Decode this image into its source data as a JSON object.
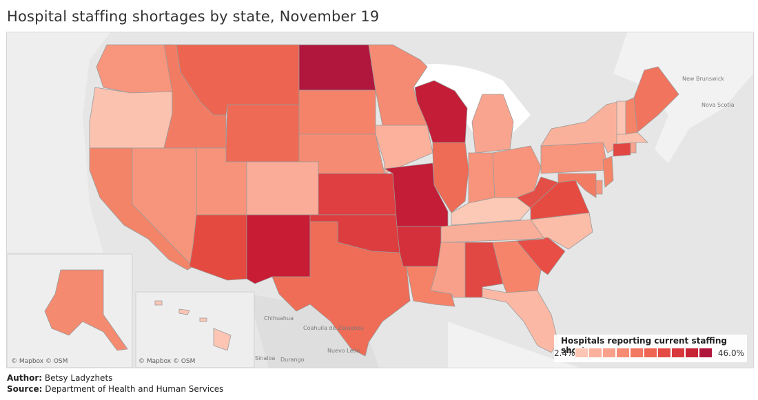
{
  "title": "Hospital staffing shortages by state, November 19",
  "legend": {
    "title": "Hospitals reporting current staffing shortage",
    "min_label": "2.4%",
    "max_label": "46.0%",
    "colors": [
      "#fcc5b4",
      "#fbb09c",
      "#f9a08a",
      "#f78b74",
      "#f27861",
      "#ee6652",
      "#e34a44",
      "#d8373c",
      "#c72335",
      "#b0163c"
    ]
  },
  "credits": {
    "main": "© Mapbox © OSM",
    "alaska_inset": "© Mapbox © OSM",
    "hawaii_inset": "© Mapbox © OSM"
  },
  "geo_labels": {
    "new_brunswick": "New Brunswick",
    "nova_scotia": "Nova Scotia",
    "chihuahua": "Chihuahua",
    "coahuila": "Coahuila de Zaragoza",
    "nuevo_leon": "Nuevo León",
    "sinaloa": "Sinaloa",
    "durango": "Durango"
  },
  "footer": {
    "author_label": "Author:",
    "author_value": "Betsy Ladyzhets",
    "source_label": "Source:",
    "source_value": "Department of Health and Human Services"
  },
  "state_colors": {
    "WA": "#f8957d",
    "OR": "#fcc2b0",
    "CA": "#f48468",
    "NV": "#f7957c",
    "ID": "#f27c63",
    "MT": "#ed6550",
    "WY": "#ef6a55",
    "UT": "#f7937b",
    "AZ": "#e54a40",
    "CO": "#fbac98",
    "NM": "#c81c35",
    "ND": "#b1173c",
    "SD": "#f4836a",
    "NE": "#f58b72",
    "KS": "#df3f40",
    "OK": "#dd3d3f",
    "TX": "#ef6c56",
    "MN": "#f58b72",
    "IA": "#fbb19c",
    "MO": "#c41d37",
    "AR": "#d3303b",
    "LA": "#f58267",
    "WI": "#c41d37",
    "IL": "#ee6b56",
    "MS": "#f9a08a",
    "AL": "#e14843",
    "MI": "#f9a48e",
    "IN": "#f8947b",
    "OH": "#f8947b",
    "KY": "#fcc9b6",
    "TN": "#f9ae99",
    "GA": "#f5846a",
    "FL": "#fbb9a5",
    "SC": "#e84e45",
    "NC": "#fbbca8",
    "VA": "#e64b42",
    "WV": "#e34f46",
    "PA": "#f8957d",
    "NY": "#fab19c",
    "VT": "#fcc5b4",
    "NH": "#f48468",
    "ME": "#f1755e",
    "MA": "#fcbfac",
    "CT": "#e14843",
    "RI": "#f9a48e",
    "NJ": "#f48468",
    "DE": "#f8957d",
    "MD": "#f27c63",
    "AK": "#f48a70",
    "HI": "#fcc5b4"
  }
}
